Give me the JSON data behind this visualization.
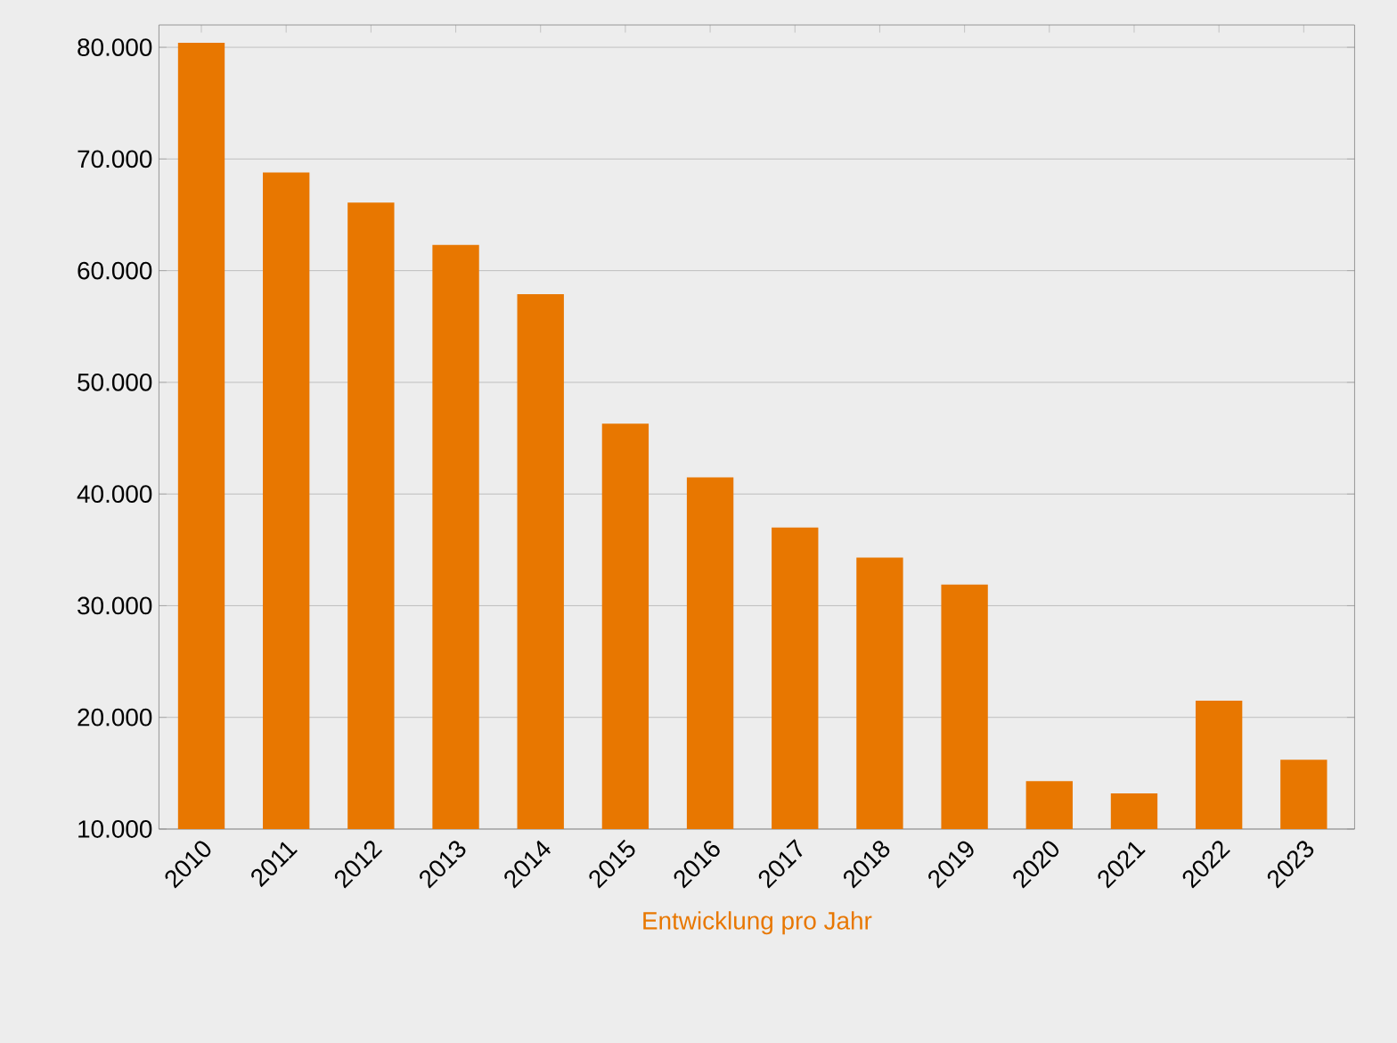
{
  "chart_data": {
    "type": "bar",
    "xlabel": "Entwicklung pro Jahr",
    "categories": [
      "2010",
      "2011",
      "2012",
      "2013",
      "2014",
      "2015",
      "2016",
      "2017",
      "2018",
      "2019",
      "2020",
      "2021",
      "2022",
      "2023"
    ],
    "values": [
      80400,
      68800,
      66100,
      62300,
      57900,
      46300,
      41500,
      37000,
      34300,
      31900,
      14300,
      13200,
      21500,
      16200
    ],
    "color": "#e87700",
    "ylim": [
      10000,
      82000
    ],
    "yticks": [
      {
        "value": 10000,
        "label": "10.000"
      },
      {
        "value": 20000,
        "label": "20.000"
      },
      {
        "value": 30000,
        "label": "30.000"
      },
      {
        "value": 40000,
        "label": "40.000"
      },
      {
        "value": 50000,
        "label": "50.000"
      },
      {
        "value": 60000,
        "label": "60.000"
      },
      {
        "value": 70000,
        "label": "70.000"
      },
      {
        "value": 80000,
        "label": "80.000"
      }
    ],
    "grid": "y"
  }
}
